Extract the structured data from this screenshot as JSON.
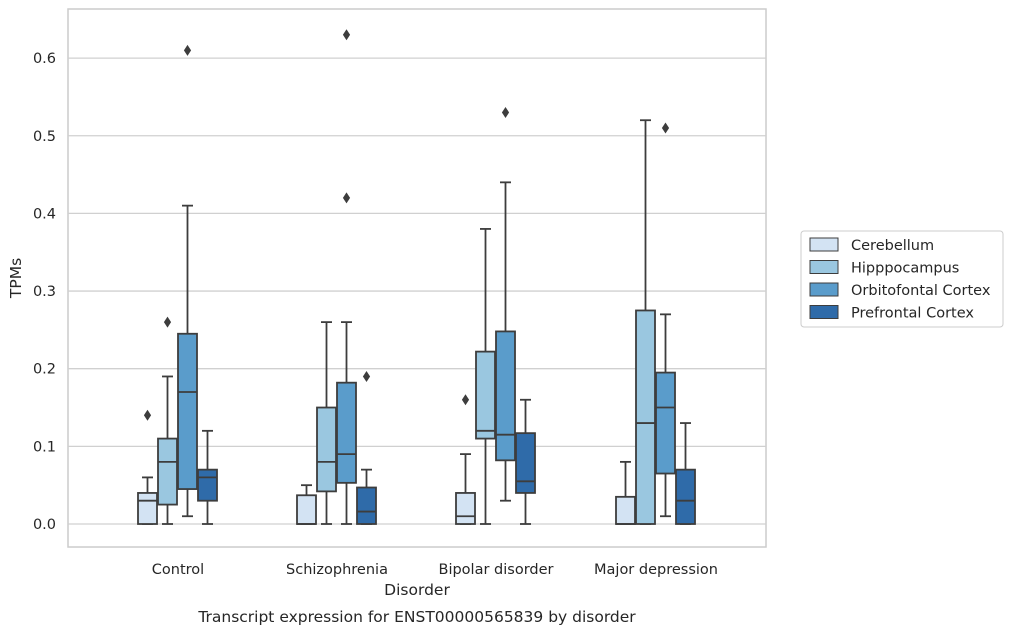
{
  "chart_data": {
    "type": "boxplot",
    "caption": "Transcript expression for ENST00000565839 by disorder",
    "xlabel": "Disorder",
    "ylabel": "TPMs",
    "ylim": [
      -0.03,
      0.66
    ],
    "yticks": [
      0.0,
      0.1,
      0.2,
      0.3,
      0.4,
      0.5,
      0.6
    ],
    "ytick_labels": [
      "0.0",
      "0.1",
      "0.2",
      "0.3",
      "0.4",
      "0.5",
      "0.6"
    ],
    "grid": "horizontal",
    "legend_position": "right",
    "categories": [
      "Control",
      "Schizophrenia",
      "Bipolar disorder",
      "Major depression"
    ],
    "series": [
      {
        "name": "Cerebellum",
        "color": "#d3e3f3",
        "boxes": [
          {
            "whislo": 0.0,
            "q1": 0.0,
            "med": 0.03,
            "q3": 0.04,
            "whishi": 0.06,
            "fliers": [
              0.14
            ]
          },
          {
            "whislo": 0.0,
            "q1": 0.0,
            "med": 0.0,
            "q3": 0.037,
            "whishi": 0.05,
            "fliers": []
          },
          {
            "whislo": 0.0,
            "q1": 0.0,
            "med": 0.01,
            "q3": 0.04,
            "whishi": 0.09,
            "fliers": [
              0.16
            ]
          },
          {
            "whislo": 0.0,
            "q1": 0.0,
            "med": 0.0,
            "q3": 0.035,
            "whishi": 0.08,
            "fliers": []
          }
        ]
      },
      {
        "name": "Hipppocampus",
        "color": "#9ac7e0",
        "boxes": [
          {
            "whislo": 0.0,
            "q1": 0.025,
            "med": 0.08,
            "q3": 0.11,
            "whishi": 0.19,
            "fliers": [
              0.26
            ]
          },
          {
            "whislo": 0.0,
            "q1": 0.042,
            "med": 0.08,
            "q3": 0.15,
            "whishi": 0.26,
            "fliers": []
          },
          {
            "whislo": 0.0,
            "q1": 0.11,
            "med": 0.12,
            "q3": 0.222,
            "whishi": 0.38,
            "fliers": []
          },
          {
            "whislo": 0.0,
            "q1": 0.0,
            "med": 0.13,
            "q3": 0.275,
            "whishi": 0.52,
            "fliers": []
          }
        ]
      },
      {
        "name": "Orbitofontal Cortex",
        "color": "#5a9ccb",
        "boxes": [
          {
            "whislo": 0.01,
            "q1": 0.045,
            "med": 0.17,
            "q3": 0.245,
            "whishi": 0.41,
            "fliers": [
              0.61
            ]
          },
          {
            "whislo": 0.0,
            "q1": 0.053,
            "med": 0.09,
            "q3": 0.182,
            "whishi": 0.26,
            "fliers": [
              0.42,
              0.63
            ]
          },
          {
            "whislo": 0.03,
            "q1": 0.082,
            "med": 0.115,
            "q3": 0.248,
            "whishi": 0.44,
            "fliers": [
              0.53
            ]
          },
          {
            "whislo": 0.01,
            "q1": 0.065,
            "med": 0.15,
            "q3": 0.195,
            "whishi": 0.27,
            "fliers": [
              0.51
            ]
          }
        ]
      },
      {
        "name": "Prefrontal Cortex",
        "color": "#2f6ba9",
        "boxes": [
          {
            "whislo": 0.0,
            "q1": 0.03,
            "med": 0.06,
            "q3": 0.07,
            "whishi": 0.12,
            "fliers": []
          },
          {
            "whislo": 0.0,
            "q1": 0.0,
            "med": 0.016,
            "q3": 0.047,
            "whishi": 0.07,
            "fliers": [
              0.19
            ]
          },
          {
            "whislo": 0.0,
            "q1": 0.04,
            "med": 0.055,
            "q3": 0.117,
            "whishi": 0.16,
            "fliers": []
          },
          {
            "whislo": 0.0,
            "q1": 0.0,
            "med": 0.03,
            "q3": 0.07,
            "whishi": 0.13,
            "fliers": []
          }
        ]
      }
    ]
  }
}
